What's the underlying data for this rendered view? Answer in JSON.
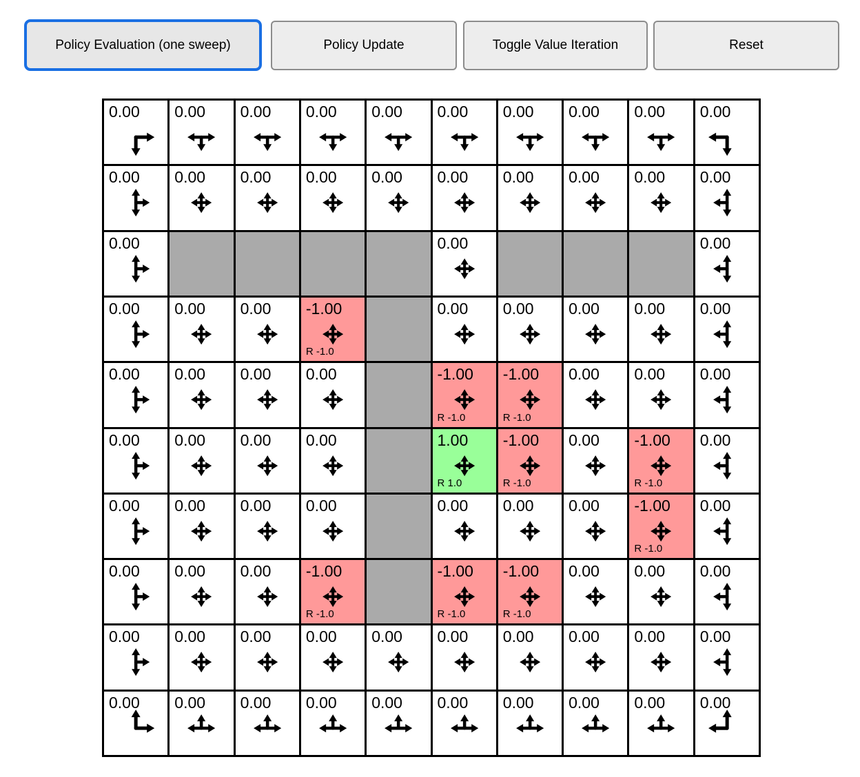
{
  "toolbar": {
    "buttons": [
      {
        "label": "Policy Evaluation (one sweep)",
        "state": "focused"
      },
      {
        "label": "Policy Update",
        "state": "normal"
      },
      {
        "label": "Toggle Value Iteration",
        "state": "normal"
      },
      {
        "label": "Reset",
        "state": "normal"
      }
    ]
  },
  "colors": {
    "accent_focus": "#1a6fe3",
    "wall": "#aaaaaa",
    "negative_reward": "#ff9999",
    "positive_reward": "#99ff99",
    "grid_line": "#000000"
  },
  "grid": {
    "rows": 10,
    "cols": 10,
    "cells": [
      [
        {
          "value": "0.00",
          "arrows": "DR"
        },
        {
          "value": "0.00",
          "arrows": "LRD"
        },
        {
          "value": "0.00",
          "arrows": "LRD"
        },
        {
          "value": "0.00",
          "arrows": "LRD"
        },
        {
          "value": "0.00",
          "arrows": "LRD"
        },
        {
          "value": "0.00",
          "arrows": "LRD"
        },
        {
          "value": "0.00",
          "arrows": "LRD"
        },
        {
          "value": "0.00",
          "arrows": "LRD"
        },
        {
          "value": "0.00",
          "arrows": "LRD"
        },
        {
          "value": "0.00",
          "arrows": "LD"
        }
      ],
      [
        {
          "value": "0.00",
          "arrows": "UDR"
        },
        {
          "value": "0.00",
          "arrows": "UDLR"
        },
        {
          "value": "0.00",
          "arrows": "UDLR"
        },
        {
          "value": "0.00",
          "arrows": "UDLR"
        },
        {
          "value": "0.00",
          "arrows": "UDLR"
        },
        {
          "value": "0.00",
          "arrows": "UDLR"
        },
        {
          "value": "0.00",
          "arrows": "UDLR"
        },
        {
          "value": "0.00",
          "arrows": "UDLR"
        },
        {
          "value": "0.00",
          "arrows": "UDLR"
        },
        {
          "value": "0.00",
          "arrows": "UDL"
        }
      ],
      [
        {
          "value": "0.00",
          "arrows": "UDR"
        },
        {
          "wall": true
        },
        {
          "wall": true
        },
        {
          "wall": true
        },
        {
          "wall": true
        },
        {
          "value": "0.00",
          "arrows": "UDLR"
        },
        {
          "wall": true
        },
        {
          "wall": true
        },
        {
          "wall": true
        },
        {
          "value": "0.00",
          "arrows": "UDL"
        }
      ],
      [
        {
          "value": "0.00",
          "arrows": "UDR"
        },
        {
          "value": "0.00",
          "arrows": "UDLR"
        },
        {
          "value": "0.00",
          "arrows": "UDLR"
        },
        {
          "value": "-1.00",
          "arrows": "UDLR",
          "highlight": "neg",
          "reward_label": "R -1.0"
        },
        {
          "wall": true
        },
        {
          "value": "0.00",
          "arrows": "UDLR"
        },
        {
          "value": "0.00",
          "arrows": "UDLR"
        },
        {
          "value": "0.00",
          "arrows": "UDLR"
        },
        {
          "value": "0.00",
          "arrows": "UDLR"
        },
        {
          "value": "0.00",
          "arrows": "UDL"
        }
      ],
      [
        {
          "value": "0.00",
          "arrows": "UDR"
        },
        {
          "value": "0.00",
          "arrows": "UDLR"
        },
        {
          "value": "0.00",
          "arrows": "UDLR"
        },
        {
          "value": "0.00",
          "arrows": "UDLR"
        },
        {
          "wall": true
        },
        {
          "value": "-1.00",
          "arrows": "UDLR",
          "highlight": "neg",
          "reward_label": "R -1.0"
        },
        {
          "value": "-1.00",
          "arrows": "UDLR",
          "highlight": "neg",
          "reward_label": "R -1.0"
        },
        {
          "value": "0.00",
          "arrows": "UDLR"
        },
        {
          "value": "0.00",
          "arrows": "UDLR"
        },
        {
          "value": "0.00",
          "arrows": "UDL"
        }
      ],
      [
        {
          "value": "0.00",
          "arrows": "UDR"
        },
        {
          "value": "0.00",
          "arrows": "UDLR"
        },
        {
          "value": "0.00",
          "arrows": "UDLR"
        },
        {
          "value": "0.00",
          "arrows": "UDLR"
        },
        {
          "wall": true
        },
        {
          "value": "1.00",
          "arrows": "UDLR",
          "highlight": "pos",
          "reward_label": "R 1.0"
        },
        {
          "value": "-1.00",
          "arrows": "UDLR",
          "highlight": "neg",
          "reward_label": "R -1.0"
        },
        {
          "value": "0.00",
          "arrows": "UDLR"
        },
        {
          "value": "-1.00",
          "arrows": "UDLR",
          "highlight": "neg",
          "reward_label": "R -1.0"
        },
        {
          "value": "0.00",
          "arrows": "UDL"
        }
      ],
      [
        {
          "value": "0.00",
          "arrows": "UDR"
        },
        {
          "value": "0.00",
          "arrows": "UDLR"
        },
        {
          "value": "0.00",
          "arrows": "UDLR"
        },
        {
          "value": "0.00",
          "arrows": "UDLR"
        },
        {
          "wall": true
        },
        {
          "value": "0.00",
          "arrows": "UDLR"
        },
        {
          "value": "0.00",
          "arrows": "UDLR"
        },
        {
          "value": "0.00",
          "arrows": "UDLR"
        },
        {
          "value": "-1.00",
          "arrows": "UDLR",
          "highlight": "neg",
          "reward_label": "R -1.0"
        },
        {
          "value": "0.00",
          "arrows": "UDL"
        }
      ],
      [
        {
          "value": "0.00",
          "arrows": "UDR"
        },
        {
          "value": "0.00",
          "arrows": "UDLR"
        },
        {
          "value": "0.00",
          "arrows": "UDLR"
        },
        {
          "value": "-1.00",
          "arrows": "UDLR",
          "highlight": "neg",
          "reward_label": "R -1.0"
        },
        {
          "wall": true
        },
        {
          "value": "-1.00",
          "arrows": "UDLR",
          "highlight": "neg",
          "reward_label": "R -1.0"
        },
        {
          "value": "-1.00",
          "arrows": "UDLR",
          "highlight": "neg",
          "reward_label": "R -1.0"
        },
        {
          "value": "0.00",
          "arrows": "UDLR"
        },
        {
          "value": "0.00",
          "arrows": "UDLR"
        },
        {
          "value": "0.00",
          "arrows": "UDL"
        }
      ],
      [
        {
          "value": "0.00",
          "arrows": "UDR"
        },
        {
          "value": "0.00",
          "arrows": "UDLR"
        },
        {
          "value": "0.00",
          "arrows": "UDLR"
        },
        {
          "value": "0.00",
          "arrows": "UDLR"
        },
        {
          "value": "0.00",
          "arrows": "UDLR"
        },
        {
          "value": "0.00",
          "arrows": "UDLR"
        },
        {
          "value": "0.00",
          "arrows": "UDLR"
        },
        {
          "value": "0.00",
          "arrows": "UDLR"
        },
        {
          "value": "0.00",
          "arrows": "UDLR"
        },
        {
          "value": "0.00",
          "arrows": "UDL"
        }
      ],
      [
        {
          "value": "0.00",
          "arrows": "UR"
        },
        {
          "value": "0.00",
          "arrows": "LRU"
        },
        {
          "value": "0.00",
          "arrows": "LRU"
        },
        {
          "value": "0.00",
          "arrows": "LRU"
        },
        {
          "value": "0.00",
          "arrows": "LRU"
        },
        {
          "value": "0.00",
          "arrows": "LRU"
        },
        {
          "value": "0.00",
          "arrows": "LRU"
        },
        {
          "value": "0.00",
          "arrows": "LRU"
        },
        {
          "value": "0.00",
          "arrows": "LRU"
        },
        {
          "value": "0.00",
          "arrows": "LU"
        }
      ]
    ]
  }
}
